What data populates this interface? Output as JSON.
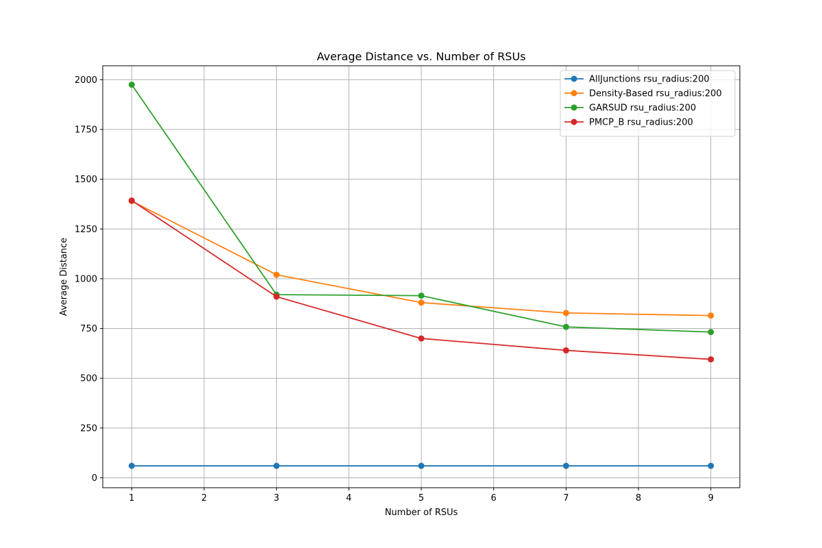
{
  "chart_data": {
    "type": "line",
    "title": "Average Distance vs. Number of RSUs",
    "xlabel": "Number of RSUs",
    "ylabel": "Average Distance",
    "x": [
      1,
      3,
      5,
      7,
      9
    ],
    "xlim": [
      0.6,
      9.4
    ],
    "ylim": [
      -50,
      2070
    ],
    "xticks": [
      1,
      2,
      3,
      4,
      5,
      6,
      7,
      8,
      9
    ],
    "yticks": [
      0,
      250,
      500,
      750,
      1000,
      1250,
      1500,
      1750,
      2000
    ],
    "grid": true,
    "legend_position": "top-right",
    "series": [
      {
        "name": "AllJunctions rsu_radius:200",
        "color": "#1f77b4",
        "values": [
          60,
          60,
          60,
          60,
          60
        ]
      },
      {
        "name": "Density-Based rsu_radius:200",
        "color": "#ff7f0e",
        "values": [
          1390,
          1020,
          880,
          828,
          815
        ]
      },
      {
        "name": "GARSUD rsu_radius:200",
        "color": "#2ca02c",
        "values": [
          1975,
          920,
          915,
          758,
          732
        ]
      },
      {
        "name": "PMCP_B rsu_radius:200",
        "color": "#d62728",
        "values": [
          1393,
          910,
          700,
          640,
          595
        ]
      }
    ]
  }
}
